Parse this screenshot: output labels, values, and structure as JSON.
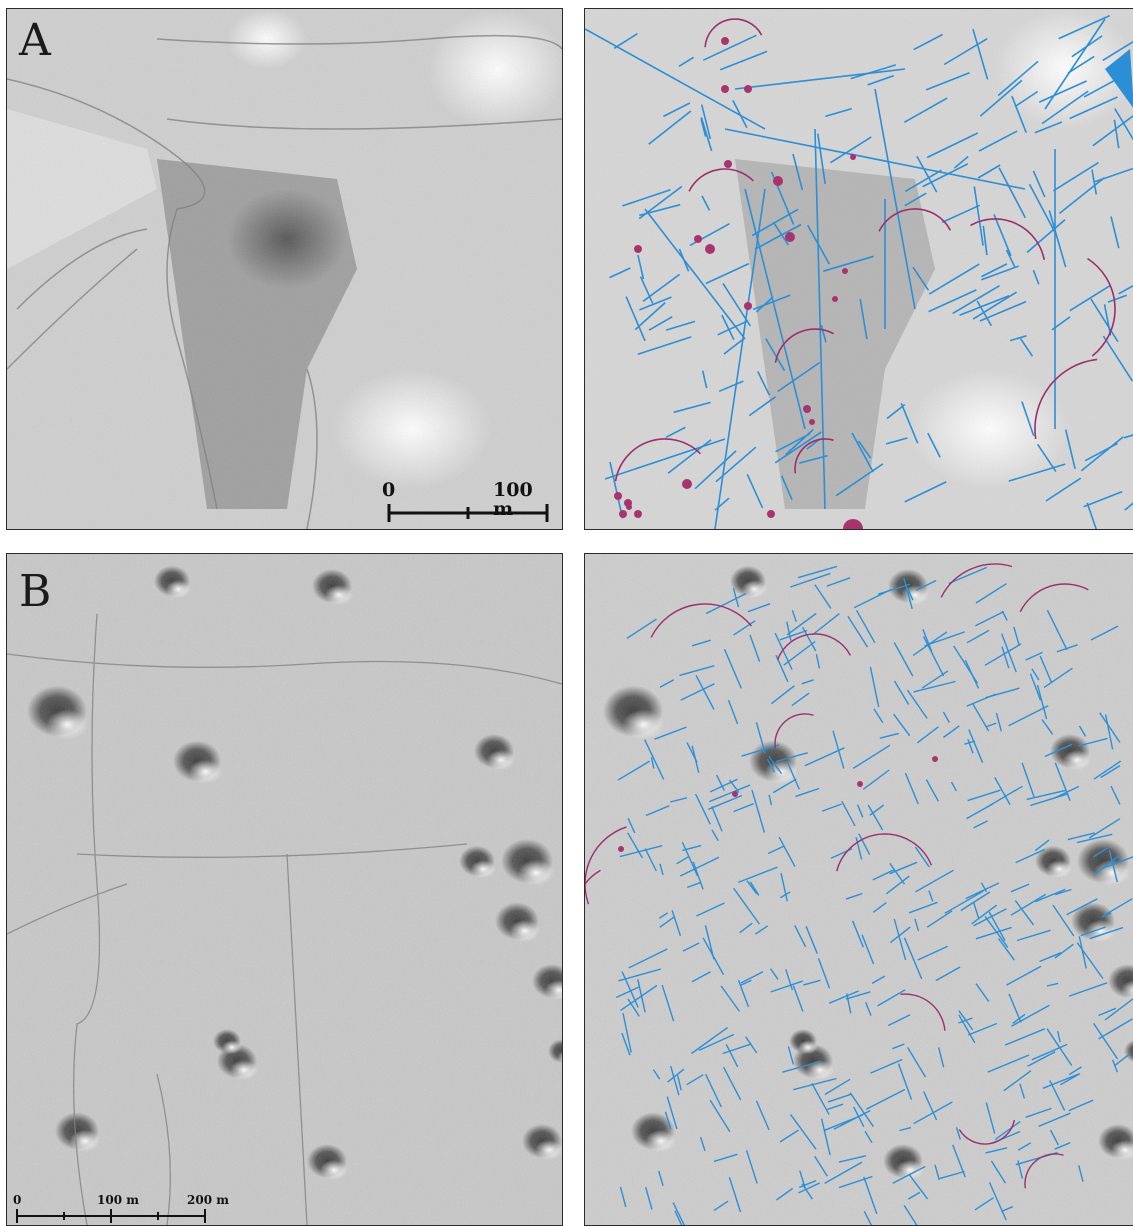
{
  "panels": {
    "a": {
      "label": "A",
      "scale": {
        "start": "0",
        "end": "100 m"
      }
    },
    "b": {
      "label": "B",
      "scale": {
        "start": "0",
        "mid": "100 m",
        "end": "200 m"
      }
    }
  },
  "colors": {
    "hillshade_light": "#e2e2e2",
    "hillshade_dark": "#5a5a5a",
    "linear_feature": "#2c8fd6",
    "curved_feature": "#9b2f6b",
    "point_feature": "#a8346e",
    "frame": "#2b2b2b"
  }
}
